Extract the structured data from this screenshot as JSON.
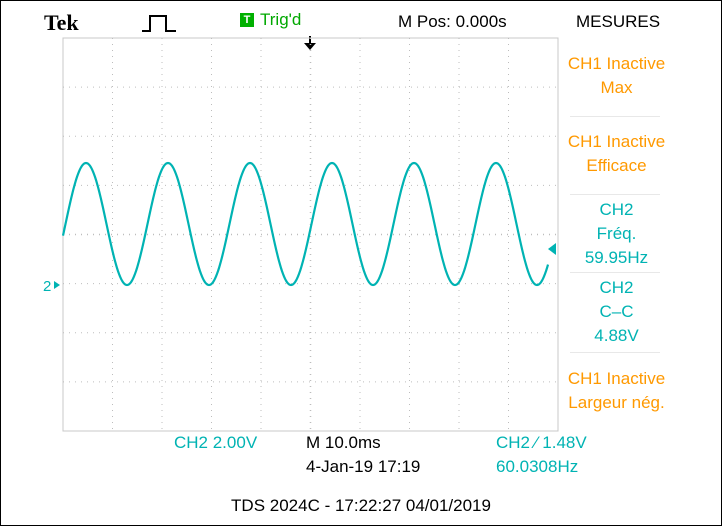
{
  "header": {
    "brand": "Tek",
    "acq_mode_icon": "pulse-icon",
    "trigger_badge": "T",
    "trigger_status": "Trig'd",
    "main_position": "M Pos: 0.000s",
    "menu_title": "MESURES"
  },
  "measurements": [
    {
      "line1": "CH1 Inactive",
      "line2": "Max",
      "line3": "",
      "color": "#ff9900"
    },
    {
      "line1": "CH1 Inactive",
      "line2": "Efficace",
      "line3": "",
      "color": "#ff9900"
    },
    {
      "line1": "CH2",
      "line2": "Fréq.",
      "line3": "59.95Hz",
      "color": "#00b3b3"
    },
    {
      "line1": "CH2",
      "line2": "C–C",
      "line3": "4.88V",
      "color": "#00b3b3"
    },
    {
      "line1": "CH1 Inactive",
      "line2": "Largeur nég.",
      "line3": "",
      "color": "#ff9900"
    }
  ],
  "channel_marker": "2",
  "status_bar": {
    "ch2_scale": "CH2  2.00V",
    "timebase": "M 10.0ms",
    "date_time": "4-Jan-19 17:19",
    "trigger_setting": "CH2 ⁄ 1.48V",
    "trigger_freq": "60.0308Hz"
  },
  "footer": "TDS 2024C - 17:22:27   04/01/2019",
  "colors": {
    "trace": "#00b3b3",
    "grid": "#bdbdbd",
    "screen_bg": "#ffffff",
    "menu_bg": "#ffffff",
    "accent_green": "#00a800",
    "orange_label": "#ff9900"
  }
}
